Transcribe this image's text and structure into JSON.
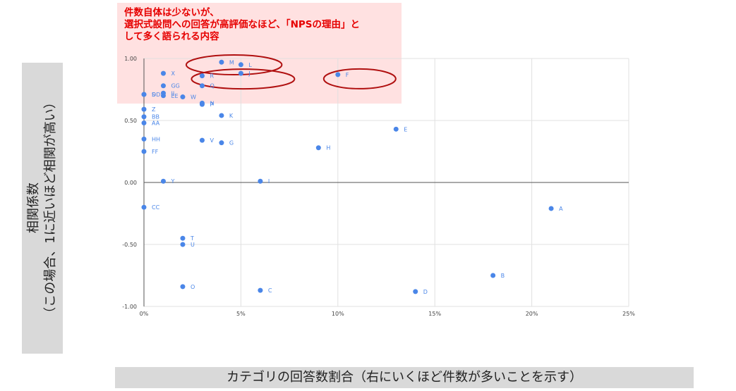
{
  "annotation": {
    "lines": [
      "件数自体は少ないが、",
      "選択式設問への回答が高評価なほど、「NPSの理由」と",
      "して多く語られる内容"
    ]
  },
  "ylabel": {
    "line1": "相関係数",
    "line2": "（この場合、1に近いほど相関が高い）"
  },
  "xlabel": "カテゴリの回答数割合（右にいくほど件数が多いことを示す）",
  "colors": {
    "point": "#4a86e8",
    "point_label": "#4a86e8",
    "highlight": "#b01010",
    "note_bg": "#ffc8c8"
  },
  "chart_data": {
    "type": "scatter",
    "x_unit": "percent",
    "xlim": [
      0,
      25
    ],
    "ylim": [
      -1.0,
      1.0
    ],
    "x_ticks": [
      "0%",
      "5%",
      "10%",
      "15%",
      "20%",
      "25%"
    ],
    "y_ticks": [
      "1.00",
      "0.50",
      "0.00",
      "-0.50",
      "-1.00"
    ],
    "grid": true,
    "points": [
      {
        "label": "A",
        "x": 21,
        "y": -0.21
      },
      {
        "label": "B",
        "x": 18,
        "y": -0.75
      },
      {
        "label": "C",
        "x": 6,
        "y": -0.87
      },
      {
        "label": "D",
        "x": 14,
        "y": -0.88
      },
      {
        "label": "E",
        "x": 13,
        "y": 0.43
      },
      {
        "label": "F",
        "x": 10,
        "y": 0.87
      },
      {
        "label": "G",
        "x": 4,
        "y": 0.32
      },
      {
        "label": "H",
        "x": 9,
        "y": 0.28
      },
      {
        "label": "I",
        "x": 6,
        "y": 0.01
      },
      {
        "label": "J",
        "x": 5,
        "y": 0.88
      },
      {
        "label": "K",
        "x": 4,
        "y": 0.54
      },
      {
        "label": "L",
        "x": 5,
        "y": 0.95
      },
      {
        "label": "M",
        "x": 4,
        "y": 0.97
      },
      {
        "label": "N",
        "x": 3,
        "y": 0.64
      },
      {
        "label": "O",
        "x": 2,
        "y": -0.84
      },
      {
        "label": "P",
        "x": 3,
        "y": 0.63
      },
      {
        "label": "Q",
        "x": 3,
        "y": 0.78
      },
      {
        "label": "R",
        "x": 3,
        "y": 0.86
      },
      {
        "label": "S",
        "x": 0,
        "y": 0.71
      },
      {
        "label": "T",
        "x": 2,
        "y": -0.45
      },
      {
        "label": "U",
        "x": 2,
        "y": -0.5
      },
      {
        "label": "V",
        "x": 3,
        "y": 0.34
      },
      {
        "label": "W",
        "x": 2,
        "y": 0.69
      },
      {
        "label": "X",
        "x": 1,
        "y": 0.88
      },
      {
        "label": "Y",
        "x": 1,
        "y": 0.01
      },
      {
        "label": "Z",
        "x": 0,
        "y": 0.59
      },
      {
        "label": "AA",
        "x": 0,
        "y": 0.48
      },
      {
        "label": "BB",
        "x": 0,
        "y": 0.53
      },
      {
        "label": "CC",
        "x": 0,
        "y": -0.2
      },
      {
        "label": "DD",
        "x": 0,
        "y": 0.71
      },
      {
        "label": "EE",
        "x": 1,
        "y": 0.7
      },
      {
        "label": "FF",
        "x": 0,
        "y": 0.25
      },
      {
        "label": "GG",
        "x": 1,
        "y": 0.78
      },
      {
        "label": "HH",
        "x": 0,
        "y": 0.35
      },
      {
        "label": "II",
        "x": 1,
        "y": 0.72
      }
    ],
    "highlighted": [
      "M",
      "L",
      "J",
      "F"
    ]
  }
}
